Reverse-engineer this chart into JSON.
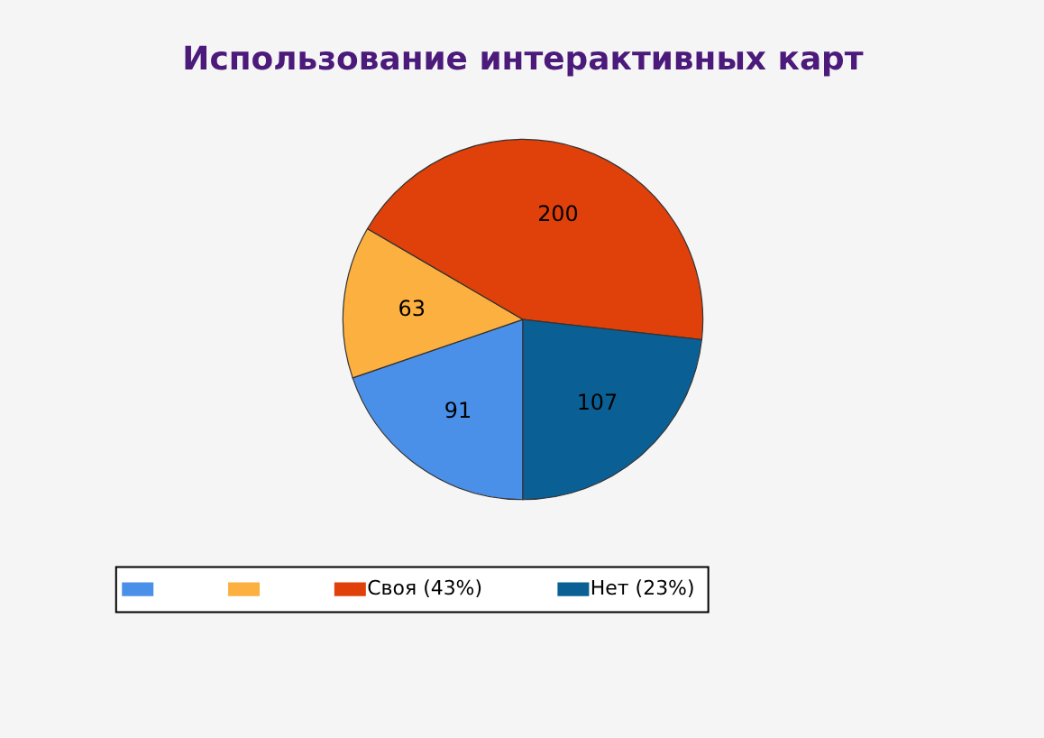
{
  "chart_data": {
    "type": "pie",
    "title": "Использование интерактивных карт",
    "categories": [
      null,
      null,
      "Своя (43%)",
      "Нет (23%)"
    ],
    "values": [
      91,
      63,
      200,
      107
    ],
    "colors": [
      "#4a90e8",
      "#fbb040",
      "#e0400a",
      "#0a6095"
    ],
    "data_labels": true,
    "legend": "bottom"
  }
}
